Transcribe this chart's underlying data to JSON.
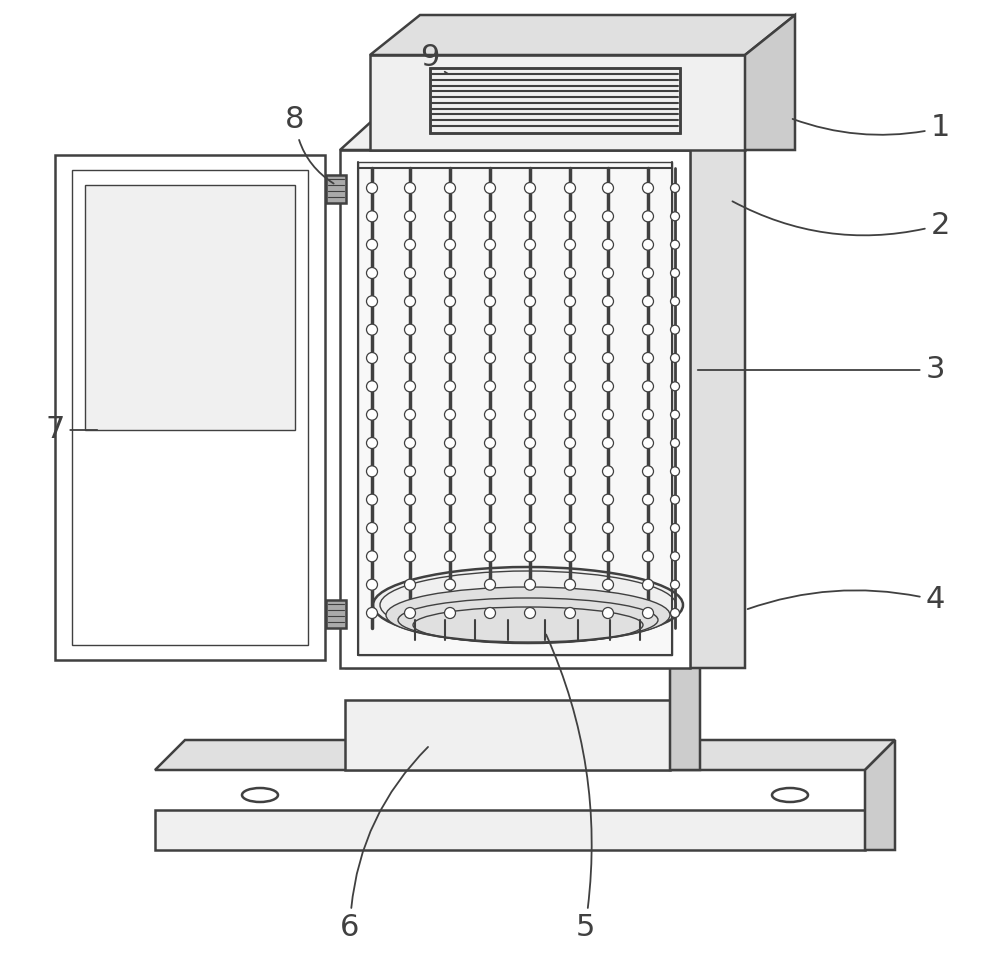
{
  "bg_color": "#ffffff",
  "line_color": "#404040",
  "lw_main": 1.8,
  "lw_thin": 1.0,
  "lw_thick": 2.2,
  "label_fontsize": 22,
  "fill_white": "#ffffff",
  "fill_light": "#f0f0f0",
  "fill_mid": "#e0e0e0",
  "fill_dark": "#cccccc",
  "fill_inner": "#f8f8f8"
}
